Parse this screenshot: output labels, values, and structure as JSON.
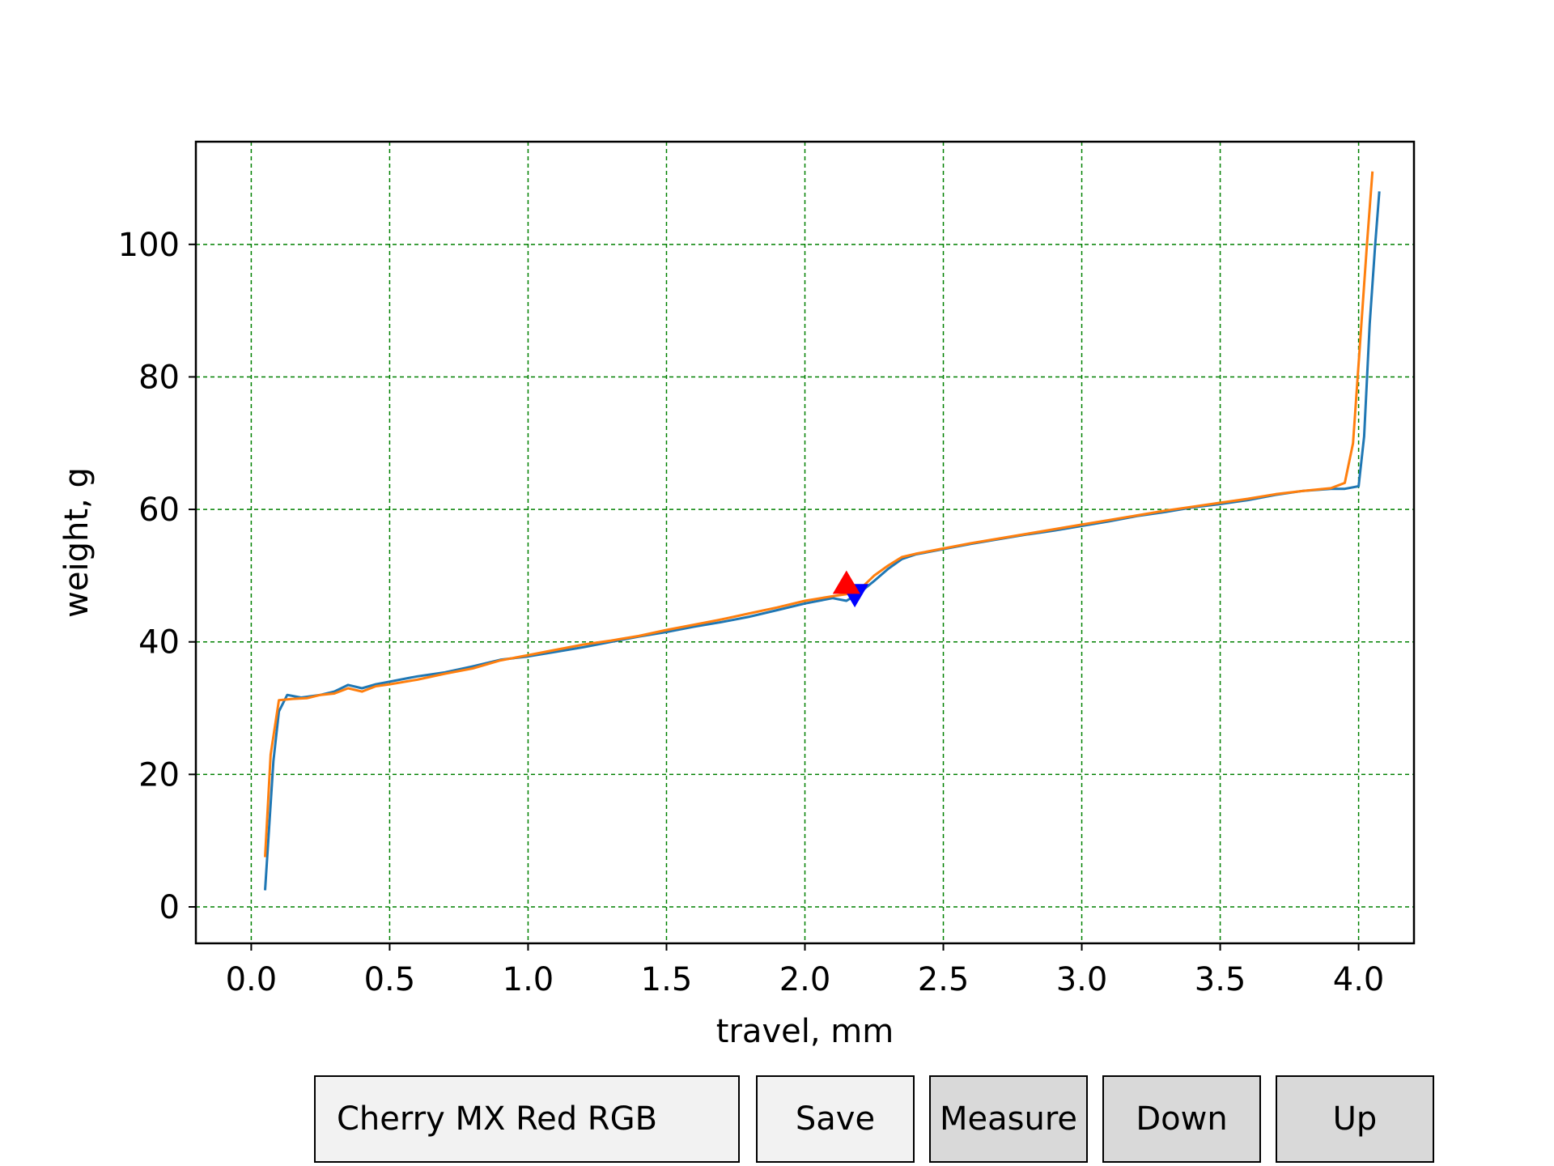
{
  "chart_data": {
    "type": "line",
    "title": "",
    "xlabel": "travel, mm",
    "ylabel": "weight, g",
    "xlim": [
      -0.2,
      4.2
    ],
    "ylim": [
      -5.5,
      115.5
    ],
    "xticks": [
      "0.0",
      "0.5",
      "1.0",
      "1.5",
      "2.0",
      "2.5",
      "3.0",
      "3.5",
      "4.0"
    ],
    "yticks": [
      "0",
      "20",
      "40",
      "60",
      "80",
      "100"
    ],
    "grid": true,
    "grid_color": "#008000",
    "legend": "none",
    "series": [
      {
        "color": "#1f77b4",
        "x": [
          0.05,
          0.08,
          0.1,
          0.13,
          0.18,
          0.25,
          0.3,
          0.35,
          0.4,
          0.45,
          0.5,
          0.6,
          0.7,
          0.8,
          0.9,
          1.0,
          1.1,
          1.2,
          1.3,
          1.4,
          1.5,
          1.6,
          1.7,
          1.8,
          1.9,
          2.0,
          2.1,
          2.15,
          2.2,
          2.25,
          2.3,
          2.35,
          2.4,
          2.5,
          2.6,
          2.7,
          2.8,
          2.9,
          3.0,
          3.1,
          3.2,
          3.3,
          3.4,
          3.5,
          3.6,
          3.7,
          3.8,
          3.9,
          3.95,
          4.0,
          4.02,
          4.04,
          4.06,
          4.075
        ],
        "y": [
          2.5,
          22,
          29.5,
          32,
          31.6,
          32,
          32.5,
          33.5,
          33,
          33.6,
          34,
          34.8,
          35.4,
          36.3,
          37.3,
          37.8,
          38.5,
          39.2,
          40,
          40.8,
          41.5,
          42.3,
          43,
          43.8,
          44.8,
          45.8,
          46.6,
          46.2,
          47.5,
          49.2,
          51,
          52.5,
          53.2,
          54,
          54.8,
          55.5,
          56.2,
          56.8,
          57.5,
          58.2,
          59,
          59.6,
          60.3,
          60.8,
          61.4,
          62.2,
          62.8,
          63.1,
          63.1,
          63.5,
          71,
          88,
          100,
          108
        ]
      },
      {
        "color": "#ff7f0e",
        "x": [
          0.05,
          0.07,
          0.1,
          0.15,
          0.2,
          0.25,
          0.3,
          0.35,
          0.4,
          0.45,
          0.5,
          0.6,
          0.7,
          0.8,
          0.9,
          1.0,
          1.1,
          1.2,
          1.3,
          1.4,
          1.5,
          1.6,
          1.7,
          1.8,
          1.9,
          2.0,
          2.1,
          2.15,
          2.2,
          2.25,
          2.3,
          2.35,
          2.4,
          2.5,
          2.6,
          2.7,
          2.8,
          2.9,
          3.0,
          3.1,
          3.2,
          3.3,
          3.4,
          3.5,
          3.6,
          3.7,
          3.8,
          3.9,
          3.95,
          3.98,
          4.0,
          4.03,
          4.05
        ],
        "y": [
          7.5,
          23,
          31.2,
          31.4,
          31.5,
          32,
          32.2,
          33,
          32.5,
          33.3,
          33.6,
          34.3,
          35.2,
          36,
          37.2,
          38,
          38.8,
          39.6,
          40.2,
          40.9,
          41.8,
          42.6,
          43.4,
          44.3,
          45.2,
          46.2,
          46.9,
          47.2,
          48,
          50,
          51.5,
          52.8,
          53.3,
          54.1,
          54.9,
          55.6,
          56.3,
          57,
          57.7,
          58.4,
          59.1,
          59.8,
          60.4,
          61,
          61.6,
          62.3,
          62.8,
          63.2,
          64,
          70,
          82,
          100,
          111
        ]
      }
    ],
    "markers": [
      {
        "shape": "triangle-down",
        "x": 2.18,
        "y": 47.5,
        "color": "#0000ff"
      },
      {
        "shape": "triangle-up",
        "x": 2.15,
        "y": 48.5,
        "color": "#ff0000"
      }
    ]
  },
  "controls": {
    "name_input_value": "Cherry MX Red RGB",
    "save_label": "Save",
    "measure_label": "Measure",
    "down_label": "Down",
    "up_label": "Up"
  }
}
